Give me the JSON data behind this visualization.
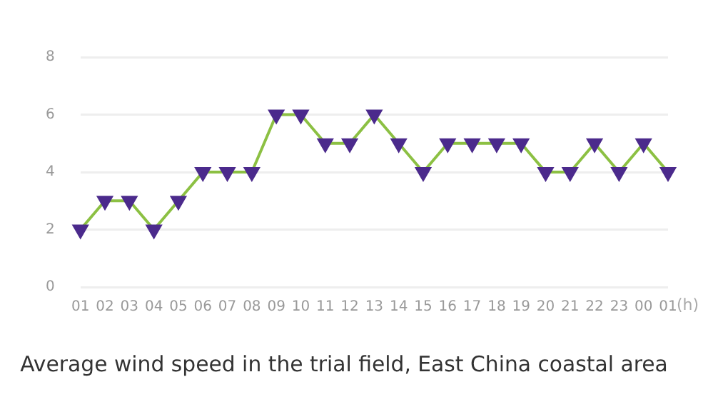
{
  "chart_data": {
    "type": "line",
    "title": "Average wind speed in the trial field, East China coastal area",
    "xlabel": "(h)",
    "categories": [
      "01",
      "02",
      "03",
      "04",
      "05",
      "06",
      "07",
      "08",
      "09",
      "10",
      "11",
      "12",
      "13",
      "14",
      "15",
      "16",
      "17",
      "18",
      "19",
      "20",
      "21",
      "22",
      "23",
      "00",
      "01"
    ],
    "series": [
      {
        "color": "#8cc043",
        "values": [
          2,
          3,
          3,
          2,
          3,
          4,
          4,
          4,
          6,
          6,
          5,
          5,
          6,
          5,
          4,
          5,
          5,
          5,
          5,
          4,
          4,
          5,
          4,
          5,
          4
        ],
        "colors": [
          "#4b2a8c",
          "#4b2a8c",
          "#4b2a8c",
          "#4b2a8c",
          "#4b2a8c",
          "#4b2a8c",
          "#4b2a8c",
          "#4b2a8c",
          "#4b2a8c",
          "#4b2a8c",
          "#4b2a8c",
          "#4b2a8c",
          "#4b2a8c",
          "#4b2a8c",
          "#4b2a8c",
          "#4b2a8c",
          "#4b2a8c",
          "#4b2a8c",
          "#4b2a8c",
          "#4b2a8c",
          "#4b2a8c",
          "#4b2a8c",
          "#4b2a8c",
          "#4b2a8c",
          "#4b2a8c"
        ]
      }
    ],
    "ylim": [
      0,
      8
    ],
    "yticks": [
      0,
      2,
      4,
      6,
      8
    ],
    "grid": "y",
    "legend": false,
    "marker": "triangle",
    "line_style": "solid"
  }
}
